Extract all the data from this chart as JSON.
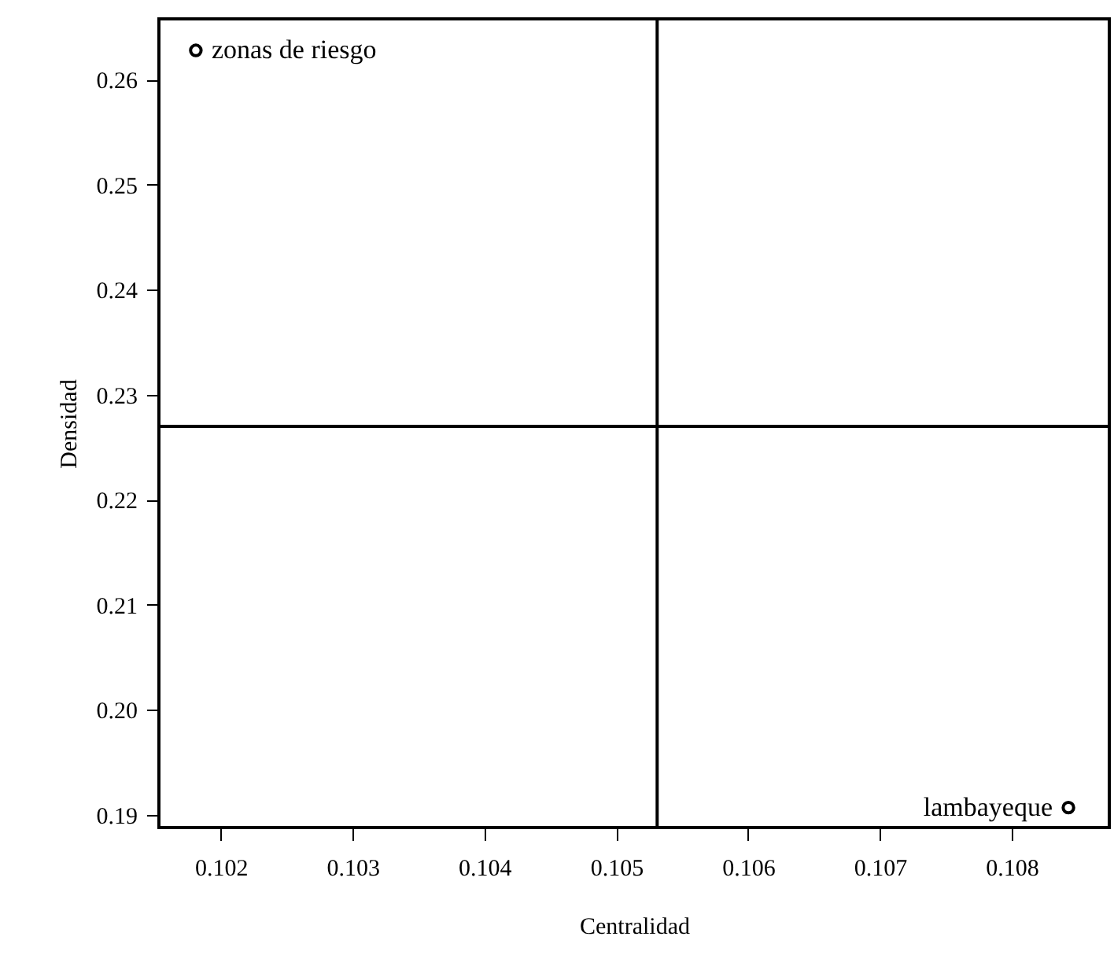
{
  "chart_data": {
    "type": "scatter",
    "xlabel": "Centralidad",
    "ylabel": "Densidad",
    "x": [
      0.10181,
      0.10843
    ],
    "series": [
      {
        "color": "#000000",
        "values": [
          0.2628,
          0.1907
        ]
      }
    ],
    "xlim": [
      0.10153,
      0.10874
    ],
    "ylim": [
      0.1888,
      0.2658
    ],
    "xticks": [
      0.102,
      0.103,
      0.104,
      0.105,
      0.106,
      0.107,
      0.108
    ],
    "yticks": [
      0.19,
      {
        "value": 0.2,
        "label": "0.20"
      },
      0.21,
      0.22,
      0.23,
      0.24,
      0.25,
      0.26
    ],
    "ref_lines": [
      {
        "axis": "x",
        "value": 0.10531,
        "color": "#000000"
      },
      {
        "axis": "y",
        "value": 0.227,
        "color": "#000000"
      }
    ],
    "annotations": [
      {
        "text": "zonas de riesgo",
        "x": 0.10181,
        "y": 0.2628
      },
      {
        "text": "lambayeque",
        "x": 0.10843,
        "y": 0.1907
      }
    ],
    "marker": "circle",
    "grid": false
  }
}
